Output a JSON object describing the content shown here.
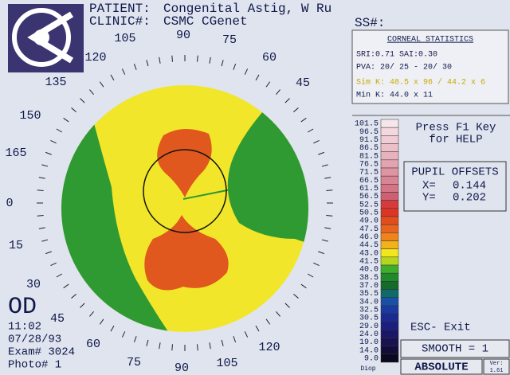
{
  "header": {
    "patient_label": "PATIENT:",
    "patient": "Congenital Astig, W Ru",
    "clinic_label": "CLINIC#:",
    "clinic": "CSMC CGenet",
    "ss_label": "SS#:"
  },
  "angles": {
    "top": [
      "120",
      "105",
      "90",
      "75",
      "60",
      "45"
    ],
    "left": [
      "135",
      "150",
      "165",
      "0",
      "15",
      "30"
    ],
    "bottom": [
      "45",
      "60",
      "75",
      "90",
      "105",
      "120"
    ]
  },
  "statistics": {
    "title": "CORNEAL STATISTICS",
    "lines": [
      "SRI:0.71 SAI:0.30",
      "PVA: 20/ 25 - 20/ 30",
      "Sim K: 48.5 x 96 / 44.2 x  6",
      "Min K:  44.0 x 11"
    ]
  },
  "scale": {
    "steps": [
      {
        "label": "101.5",
        "color": "#f6e6ea"
      },
      {
        "label": "96.5",
        "color": "#f3d9df"
      },
      {
        "label": "91.5",
        "color": "#f0ccd4"
      },
      {
        "label": "86.5",
        "color": "#ecc0c9"
      },
      {
        "label": "81.5",
        "color": "#e8b2bd"
      },
      {
        "label": "76.5",
        "color": "#e3a3b0"
      },
      {
        "label": "71.5",
        "color": "#de94a2"
      },
      {
        "label": "66.5",
        "color": "#d98494"
      },
      {
        "label": "61.5",
        "color": "#d47485"
      },
      {
        "label": "56.5",
        "color": "#cf5f72"
      },
      {
        "label": "52.5",
        "color": "#d63a3a"
      },
      {
        "label": "50.5",
        "color": "#dd3424"
      },
      {
        "label": "49.0",
        "color": "#e24d1e"
      },
      {
        "label": "47.5",
        "color": "#e8641e"
      },
      {
        "label": "46.0",
        "color": "#f0841c"
      },
      {
        "label": "44.5",
        "color": "#f4b11a"
      },
      {
        "label": "43.0",
        "color": "#f2e61c"
      },
      {
        "label": "41.5",
        "color": "#b6d61e"
      },
      {
        "label": "40.0",
        "color": "#3fae2c"
      },
      {
        "label": "38.5",
        "color": "#1e8a2a"
      },
      {
        "label": "37.0",
        "color": "#166a2a"
      },
      {
        "label": "35.5",
        "color": "#0f6a6a"
      },
      {
        "label": "34.0",
        "color": "#1b4fa6"
      },
      {
        "label": "32.5",
        "color": "#1a3aa0"
      },
      {
        "label": "30.5",
        "color": "#1a2a90"
      },
      {
        "label": "29.0",
        "color": "#1a1f80"
      },
      {
        "label": "24.0",
        "color": "#1a1768"
      },
      {
        "label": "19.0",
        "color": "#181250"
      },
      {
        "label": "14.0",
        "color": "#140c38"
      },
      {
        "label": "9.0",
        "color": "#0c0820"
      }
    ],
    "unit": "Diop"
  },
  "help": [
    "Press F1 Key",
    "for HELP"
  ],
  "pupil": {
    "title": "PUPIL OFFSETS",
    "x_label": "X=",
    "x": "0.144",
    "y_label": "Y=",
    "y": "0.202"
  },
  "exit": "ESC- Exit",
  "smooth": "SMOOTH = 1",
  "mode": "ABSOLUTE",
  "version_label": "Ver:",
  "version": "1.61",
  "exam": {
    "eye": "OD",
    "time": "11:02",
    "date": "07/28/93",
    "exam": "Exam# 3024",
    "photo": "Photo# 1"
  }
}
